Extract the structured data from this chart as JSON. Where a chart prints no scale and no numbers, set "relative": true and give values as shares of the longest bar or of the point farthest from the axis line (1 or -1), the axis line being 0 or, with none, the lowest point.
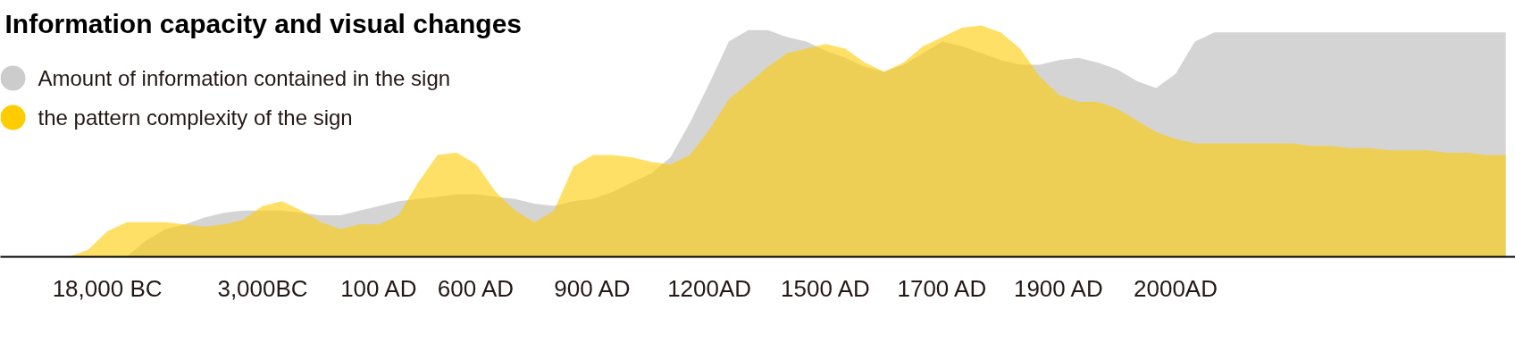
{
  "chart_data": {
    "type": "area",
    "title": "Information capacity and visual changes",
    "relative": true,
    "legend": "top left",
    "categories": [
      null,
      null,
      null,
      null,
      null,
      "18,000 BC",
      null,
      null,
      null,
      null,
      null,
      null,
      null,
      "3,000BC",
      null,
      null,
      null,
      null,
      null,
      "100 AD",
      null,
      null,
      null,
      null,
      "600 AD",
      null,
      null,
      null,
      null,
      null,
      "900 AD",
      null,
      null,
      null,
      null,
      null,
      "1200AD",
      null,
      null,
      null,
      null,
      null,
      "1500 AD",
      null,
      null,
      null,
      null,
      null,
      "1700 AD",
      null,
      null,
      null,
      null,
      null,
      "1900 AD",
      null,
      null,
      null,
      null,
      null,
      "2000AD",
      null,
      null,
      null,
      null,
      null,
      null,
      null,
      null,
      null,
      null,
      null,
      null,
      null,
      null,
      null,
      null,
      null
    ],
    "series": [
      {
        "name": "Amount of information contained in the sign",
        "color": "#cccccc",
        "values": [
          null,
          null,
          null,
          null,
          null,
          null,
          0,
          0.07,
          0.12,
          0.14,
          0.17,
          0.19,
          0.2,
          0.2,
          0.2,
          0.19,
          0.18,
          0.18,
          0.2,
          0.22,
          0.24,
          0.25,
          0.26,
          0.27,
          0.27,
          0.26,
          0.25,
          0.23,
          0.22,
          0.24,
          0.25,
          0.28,
          0.32,
          0.36,
          0.43,
          0.58,
          0.75,
          0.93,
          0.98,
          0.98,
          0.95,
          0.93,
          0.89,
          0.86,
          0.82,
          0.8,
          0.83,
          0.88,
          0.93,
          0.91,
          0.88,
          0.85,
          0.83,
          0.83,
          0.85,
          0.86,
          0.84,
          0.81,
          0.76,
          0.73,
          0.79,
          0.93,
          0.97,
          0.97,
          0.97,
          0.97,
          0.97,
          0.97,
          0.97,
          0.97,
          0.97,
          0.97,
          0.97,
          0.97,
          0.97,
          0.97,
          0.97,
          0.97
        ]
      },
      {
        "name": "the pattern complexity of the sign",
        "color": "#ffcc00",
        "values": [
          null,
          null,
          null,
          0,
          0.03,
          0.11,
          0.15,
          0.15,
          0.15,
          0.14,
          0.13,
          0.14,
          0.16,
          0.22,
          0.24,
          0.2,
          0.15,
          0.12,
          0.14,
          0.14,
          0.18,
          0.32,
          0.44,
          0.45,
          0.4,
          0.28,
          0.2,
          0.15,
          0.2,
          0.39,
          0.44,
          0.44,
          0.43,
          0.41,
          0.4,
          0.44,
          0.55,
          0.68,
          0.75,
          0.82,
          0.88,
          0.9,
          0.92,
          0.9,
          0.84,
          0.8,
          0.84,
          0.91,
          0.95,
          0.99,
          1.0,
          0.97,
          0.9,
          0.78,
          0.7,
          0.67,
          0.67,
          0.64,
          0.59,
          0.54,
          0.51,
          0.49,
          0.49,
          0.49,
          0.49,
          0.49,
          0.49,
          0.48,
          0.48,
          0.47,
          0.47,
          0.46,
          0.46,
          0.46,
          0.45,
          0.45,
          0.44,
          0.44
        ]
      }
    ]
  }
}
